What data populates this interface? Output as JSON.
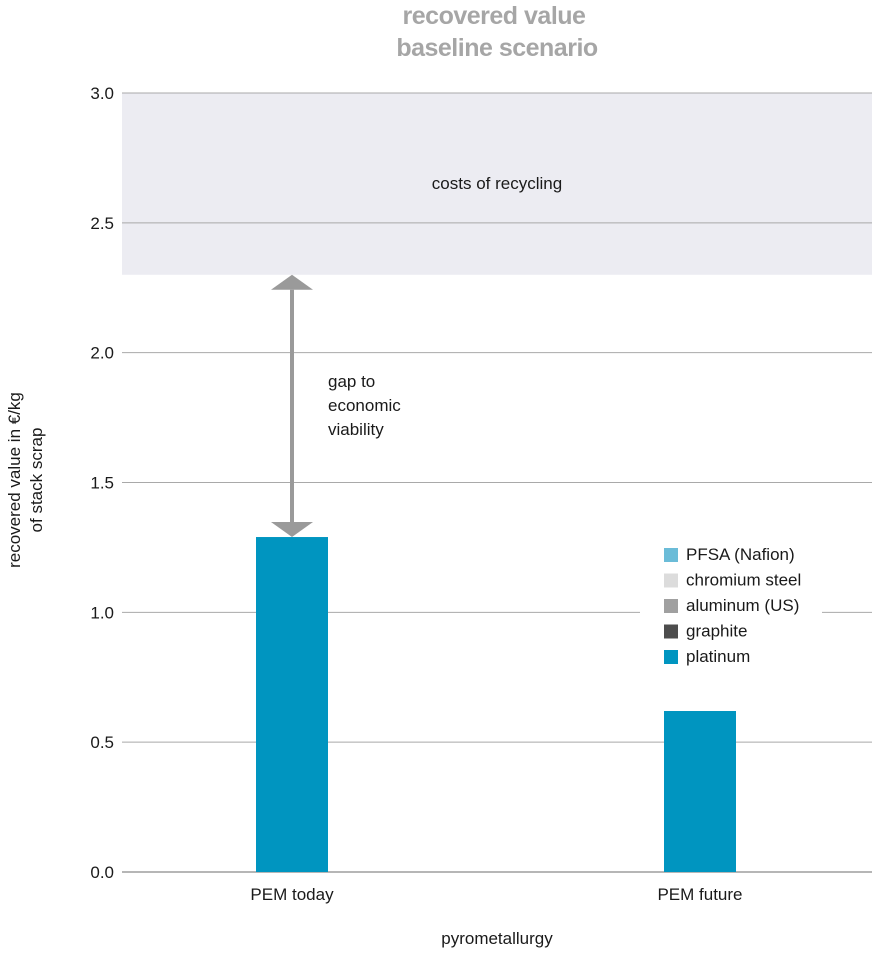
{
  "chart_data": {
    "type": "bar",
    "title": "recovered value",
    "subtitle": "baseline scenario",
    "xlabel": "pyrometallurgy",
    "ylabel_lines": [
      "recovered value in €/kg",
      "of stack scrap"
    ],
    "ylim": [
      0,
      3.0
    ],
    "yticks": [
      0.0,
      0.5,
      1.0,
      1.5,
      2.0,
      2.5,
      3.0
    ],
    "ytick_labels": [
      "0.0",
      "0.5",
      "1.0",
      "1.5",
      "2.0",
      "2.5",
      "3.0"
    ],
    "grid": true,
    "categories": [
      "PEM today",
      "PEM future"
    ],
    "series": [
      {
        "name": "PFSA (Nafion)",
        "color": "#6bbcd8",
        "values": [
          0,
          0
        ]
      },
      {
        "name": "chromium steel",
        "color": "#dcdcdc",
        "values": [
          0,
          0
        ]
      },
      {
        "name": "aluminum (US)",
        "color": "#a0a0a0",
        "values": [
          0,
          0
        ]
      },
      {
        "name": "graphite",
        "color": "#4d4d4d",
        "values": [
          0,
          0
        ]
      },
      {
        "name": "platinum",
        "color": "#0095c0",
        "values": [
          1.29,
          0.62
        ]
      }
    ],
    "legend_position": "right",
    "recycling_cost_band": {
      "label": "costs of recycling",
      "from": 2.3,
      "to": 3.0,
      "color": "#ececf2"
    },
    "gap_annotation": {
      "lines": [
        "gap to",
        "economic",
        "viability"
      ],
      "from": 1.29,
      "to": 2.3,
      "color": "#9a9a9a"
    }
  }
}
